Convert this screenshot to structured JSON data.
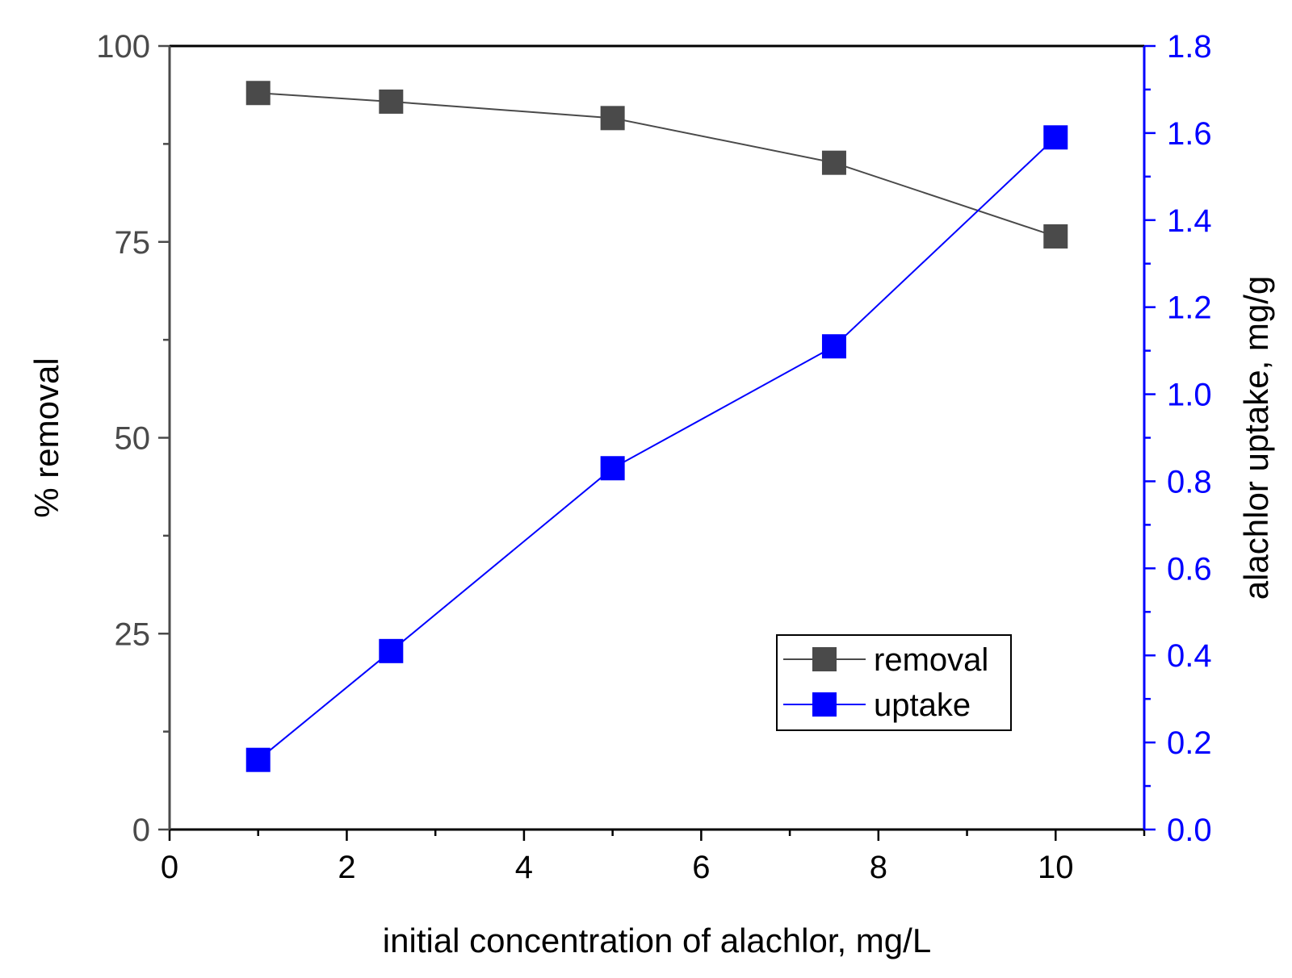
{
  "chart_data": {
    "type": "line",
    "title": "",
    "xlabel": "initial concentration of alachlor, mg/L",
    "ylabel_left": "% removal",
    "ylabel_right": "alachlor uptake, mg/g",
    "xlim": [
      0,
      11
    ],
    "ylim_left": [
      0,
      100
    ],
    "ylim_right": [
      0,
      1.8
    ],
    "x_ticks": [
      "0",
      "2",
      "4",
      "6",
      "8",
      "10"
    ],
    "y_left_ticks": [
      "0",
      "25",
      "50",
      "75",
      "100"
    ],
    "y_right_ticks": [
      "0.0",
      "0.2",
      "0.4",
      "0.6",
      "0.8",
      "1.0",
      "1.2",
      "1.4",
      "1.6",
      "1.8"
    ],
    "grid": false,
    "legend_position": "bottom-right",
    "series": [
      {
        "name": "removal",
        "axis": "left",
        "color": "#4a4a4a",
        "marker": "square",
        "x": [
          1,
          2.5,
          5,
          7.5,
          10
        ],
        "y": [
          94,
          92.9,
          90.8,
          85.1,
          75.7
        ]
      },
      {
        "name": "uptake",
        "axis": "right",
        "color": "#0000ff",
        "marker": "square",
        "x": [
          1,
          2.5,
          5,
          7.5,
          10
        ],
        "y": [
          0.16,
          0.41,
          0.83,
          1.11,
          1.59
        ]
      }
    ],
    "colors": {
      "left_axis": "#4a4a4a",
      "right_axis": "#0000ff",
      "frame": "#000000"
    }
  }
}
